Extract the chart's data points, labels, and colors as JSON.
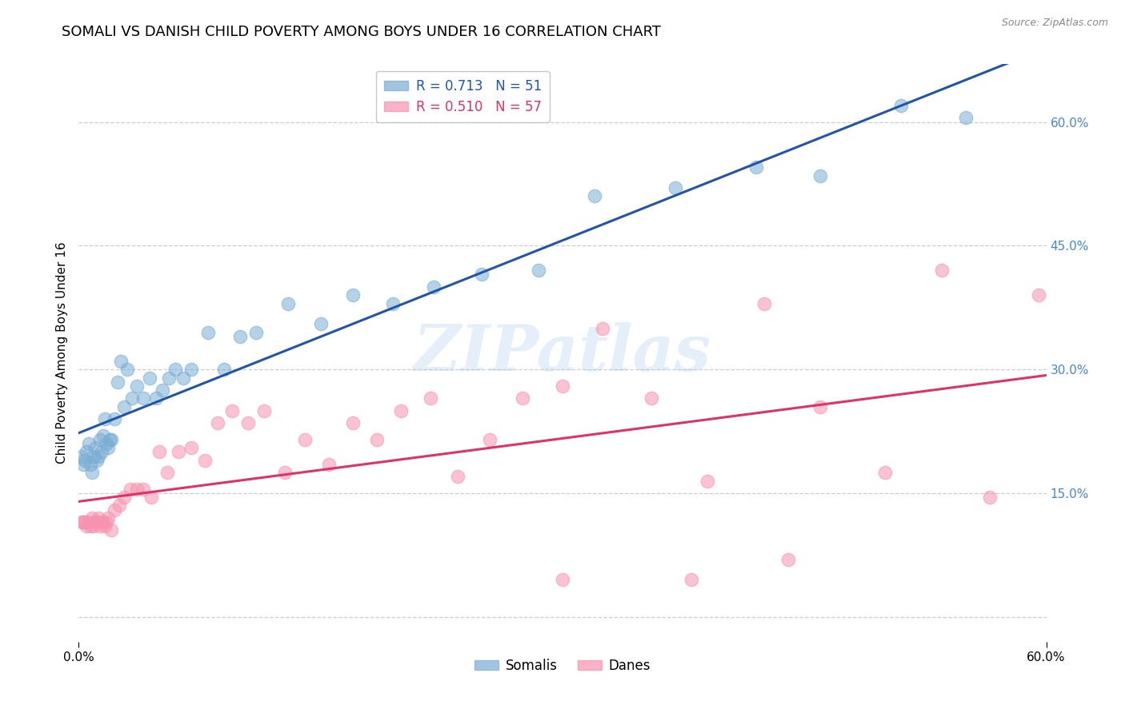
{
  "title": "SOMALI VS DANISH CHILD POVERTY AMONG BOYS UNDER 16 CORRELATION CHART",
  "source": "Source: ZipAtlas.com",
  "ylabel": "Child Poverty Among Boys Under 16",
  "xlim": [
    0.0,
    0.6
  ],
  "ylim": [
    -0.03,
    0.67
  ],
  "somali_color": "#7aadd4",
  "dane_color": "#f792b0",
  "somali_line_color": "#2255aa",
  "dane_line_color": "#dd3366",
  "legend_somali_label": "R = 0.713   N = 51",
  "legend_dane_label": "R = 0.510   N = 57",
  "watermark": "ZIPatlas",
  "background_color": "#ffffff",
  "grid_color": "#cccccc",
  "tick_color_right": "#4488cc",
  "title_fontsize": 13,
  "axis_label_fontsize": 11,
  "tick_fontsize": 11,
  "somali_x": [
    0.002,
    0.003,
    0.004,
    0.005,
    0.006,
    0.007,
    0.008,
    0.009,
    0.01,
    0.011,
    0.012,
    0.013,
    0.014,
    0.015,
    0.016,
    0.017,
    0.018,
    0.019,
    0.02,
    0.022,
    0.024,
    0.026,
    0.028,
    0.03,
    0.033,
    0.036,
    0.04,
    0.044,
    0.048,
    0.052,
    0.056,
    0.06,
    0.065,
    0.07,
    0.08,
    0.09,
    0.1,
    0.11,
    0.13,
    0.15,
    0.17,
    0.195,
    0.22,
    0.25,
    0.285,
    0.32,
    0.37,
    0.42,
    0.46,
    0.51,
    0.55
  ],
  "somali_y": [
    0.195,
    0.185,
    0.19,
    0.2,
    0.21,
    0.185,
    0.175,
    0.195,
    0.205,
    0.19,
    0.195,
    0.215,
    0.2,
    0.22,
    0.24,
    0.21,
    0.205,
    0.215,
    0.215,
    0.24,
    0.285,
    0.31,
    0.255,
    0.3,
    0.265,
    0.28,
    0.265,
    0.29,
    0.265,
    0.275,
    0.29,
    0.3,
    0.29,
    0.3,
    0.345,
    0.3,
    0.34,
    0.345,
    0.38,
    0.355,
    0.39,
    0.38,
    0.4,
    0.415,
    0.42,
    0.51,
    0.52,
    0.545,
    0.535,
    0.62,
    0.605
  ],
  "dane_x": [
    0.002,
    0.003,
    0.004,
    0.005,
    0.006,
    0.007,
    0.008,
    0.009,
    0.01,
    0.011,
    0.012,
    0.013,
    0.014,
    0.015,
    0.016,
    0.017,
    0.018,
    0.02,
    0.022,
    0.025,
    0.028,
    0.032,
    0.036,
    0.04,
    0.045,
    0.05,
    0.055,
    0.062,
    0.07,
    0.078,
    0.086,
    0.095,
    0.105,
    0.115,
    0.128,
    0.14,
    0.155,
    0.17,
    0.185,
    0.2,
    0.218,
    0.235,
    0.255,
    0.275,
    0.3,
    0.325,
    0.355,
    0.39,
    0.425,
    0.46,
    0.5,
    0.535,
    0.565,
    0.595,
    0.38,
    0.44,
    0.3
  ],
  "dane_y": [
    0.115,
    0.115,
    0.115,
    0.11,
    0.115,
    0.11,
    0.12,
    0.11,
    0.115,
    0.115,
    0.12,
    0.11,
    0.115,
    0.115,
    0.11,
    0.115,
    0.12,
    0.105,
    0.13,
    0.135,
    0.145,
    0.155,
    0.155,
    0.155,
    0.145,
    0.2,
    0.175,
    0.2,
    0.205,
    0.19,
    0.235,
    0.25,
    0.235,
    0.25,
    0.175,
    0.215,
    0.185,
    0.235,
    0.215,
    0.25,
    0.265,
    0.17,
    0.215,
    0.265,
    0.28,
    0.35,
    0.265,
    0.165,
    0.38,
    0.255,
    0.175,
    0.42,
    0.145,
    0.39,
    0.045,
    0.07,
    0.045
  ]
}
